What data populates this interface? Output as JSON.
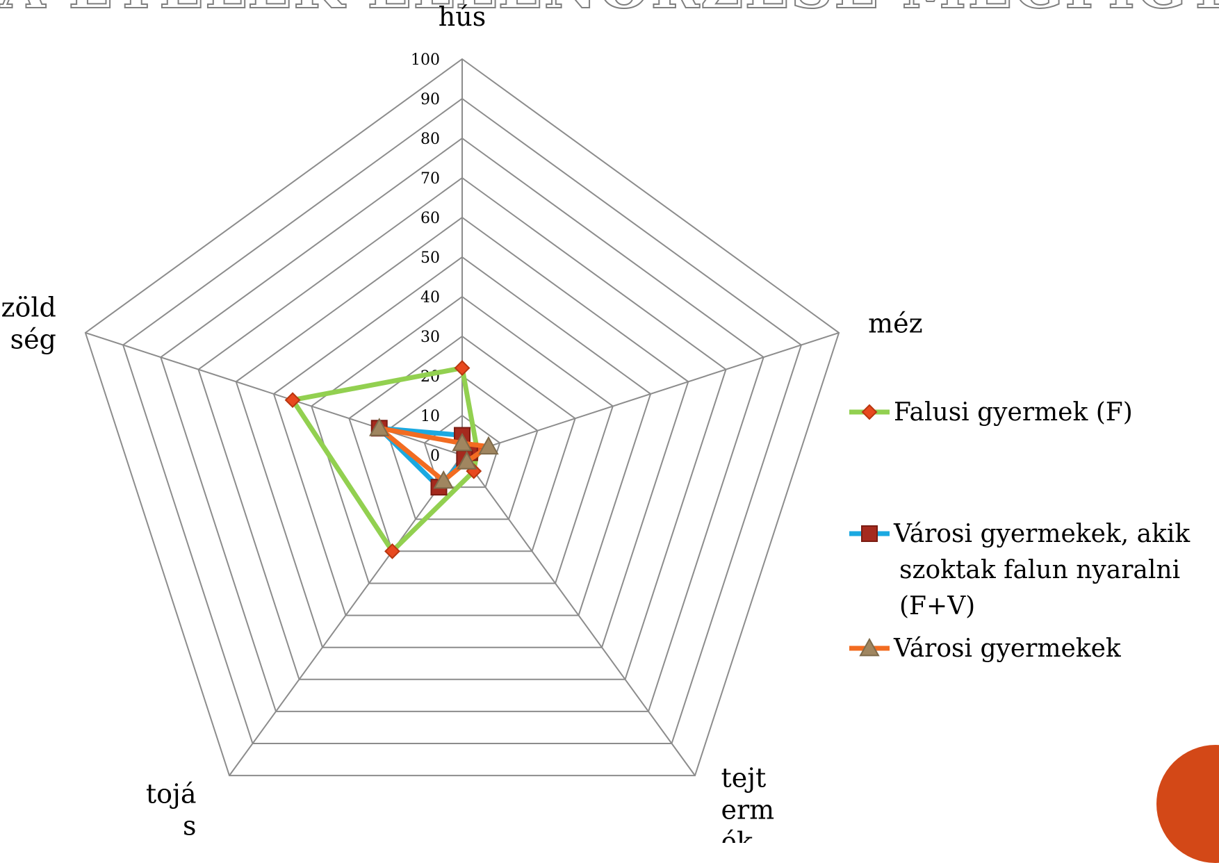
{
  "slide": {
    "title": "A ÉTELEK ELLENŐRZÉSE MEGFIGYELÉSE",
    "accent_color": "#d34817"
  },
  "chart_data": {
    "type": "radar",
    "categories": [
      [
        "hús"
      ],
      [
        "méz"
      ],
      [
        "tejt",
        "erm",
        "ék"
      ],
      [
        "tojá",
        "s"
      ],
      [
        "zöld",
        "ség"
      ]
    ],
    "rlim": [
      0,
      100
    ],
    "ticks": [
      "0",
      "10",
      "20",
      "30",
      "40",
      "50",
      "60",
      "70",
      "80",
      "90",
      "100"
    ],
    "grid": true,
    "legend_position": "right",
    "series": [
      {
        "name": "Falusi gyermek (F)",
        "values": [
          22,
          4,
          5,
          30,
          45
        ],
        "line_color": "#92d050",
        "marker": "diamond",
        "marker_color": "#e8491f",
        "marker_stroke": "#b8360f"
      },
      {
        "name": "Városi gyermekek, akik szoktak falun nyaralni (F+V)",
        "name_lines": [
          "Városi gyermekek, akik",
          "szoktak falun nyaralni",
          "(F+V)"
        ],
        "values": [
          5,
          2,
          1,
          10,
          22
        ],
        "line_color": "#1ba9e1",
        "marker": "square",
        "marker_color": "#a52a1e",
        "marker_stroke": "#7a1c12"
      },
      {
        "name": "Városi gyermekek",
        "values": [
          3,
          7,
          2,
          8,
          22
        ],
        "line_color": "#f26c21",
        "marker": "triangle",
        "marker_color": "#a08660",
        "marker_stroke": "#7d6a4a"
      }
    ]
  }
}
